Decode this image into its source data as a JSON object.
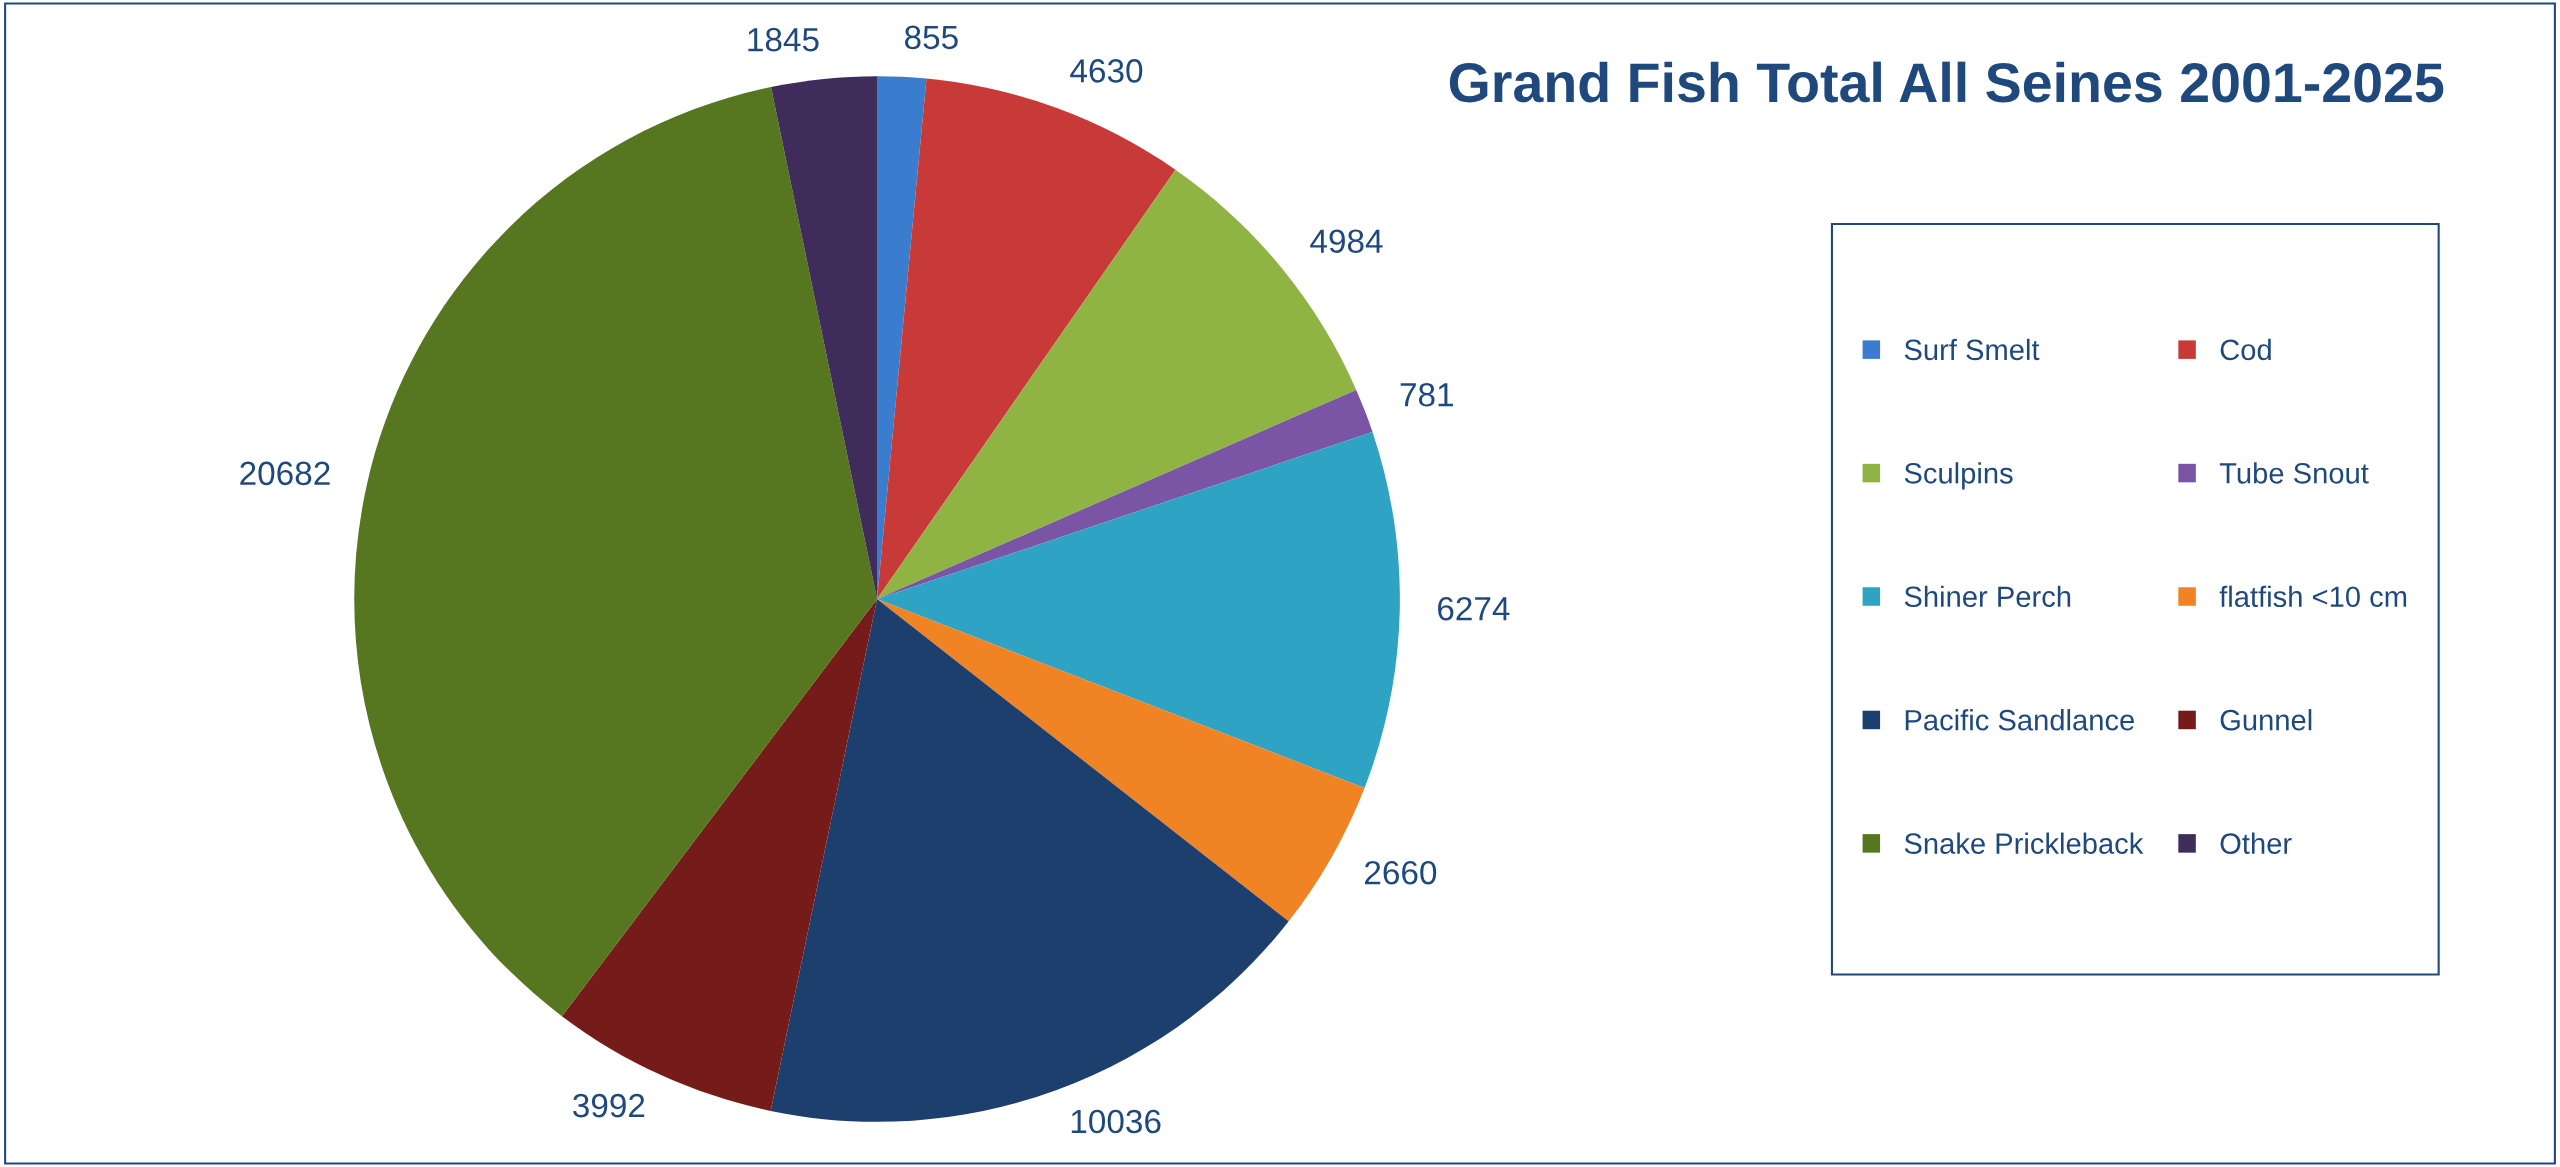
{
  "chart_data": {
    "type": "pie",
    "title": "Grand Fish Total All Seines 2001-2025",
    "categories": [
      "Surf Smelt",
      "Cod",
      "Sculpins",
      "Tube Snout",
      "Shiner Perch",
      "flatfish <10 cm",
      "Pacific Sandlance",
      "Gunnel",
      "Snake Prickleback",
      "Other"
    ],
    "values": [
      855,
      4630,
      4984,
      781,
      6274,
      2660,
      10036,
      3992,
      20682,
      1845
    ],
    "colors": [
      "#3a7dcf",
      "#c83a38",
      "#8fb443",
      "#7a55a5",
      "#2ea3c4",
      "#f08424",
      "#1d3f6e",
      "#751b1a",
      "#56761f",
      "#3f2c5a"
    ],
    "data_labels": true,
    "legend": "right"
  }
}
